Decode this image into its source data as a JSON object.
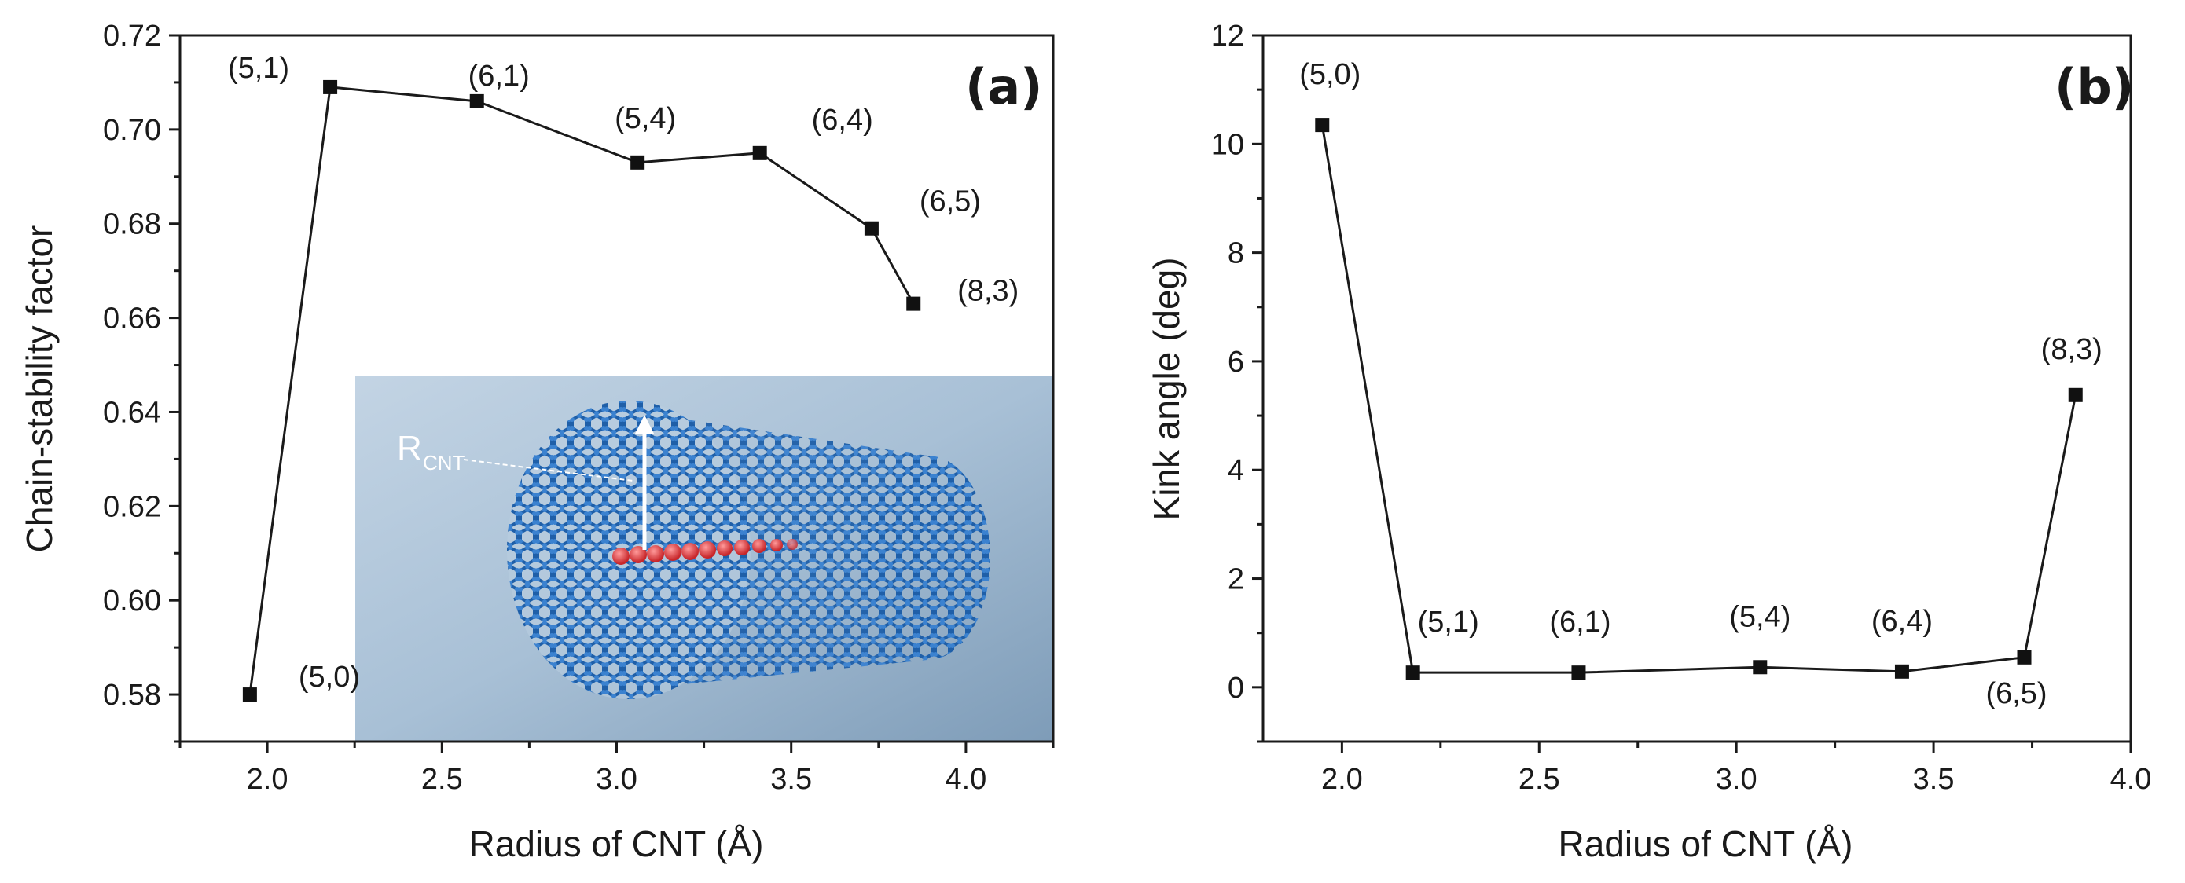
{
  "chart_data": [
    {
      "type": "line",
      "panel_label": "(a)",
      "xlabel": "Radius of CNT (Å)",
      "ylabel": "Chain-stability factor",
      "xlim": [
        1.75,
        4.25
      ],
      "ylim": [
        0.57,
        0.72
      ],
      "x_ticks": [
        "2.0",
        "2.5",
        "3.0",
        "3.5",
        "4.0"
      ],
      "x_tick_values": [
        2.0,
        2.5,
        3.0,
        3.5,
        4.0
      ],
      "y_ticks": [
        "0.58",
        "0.60",
        "0.62",
        "0.64",
        "0.66",
        "0.68",
        "0.70",
        "0.72"
      ],
      "y_tick_values": [
        0.58,
        0.6,
        0.62,
        0.64,
        0.66,
        0.68,
        0.7,
        0.72
      ],
      "series": [
        {
          "name": "Chain-stability factor",
          "x": [
            1.95,
            2.18,
            2.6,
            3.06,
            3.41,
            3.73,
            3.85
          ],
          "y": [
            0.58,
            0.709,
            0.706,
            0.693,
            0.695,
            0.679,
            0.663
          ],
          "labels": [
            "(5,0)",
            "(5,1)",
            "(6,1)",
            "(5,4)",
            "(6,4)",
            "(6,5)",
            "(8,3)"
          ]
        }
      ],
      "inset": {
        "description_label": "R",
        "description_subscript": "CNT"
      }
    },
    {
      "type": "line",
      "panel_label": "(b)",
      "xlabel": "Radius of CNT (Å)",
      "ylabel": "Kink angle (deg)",
      "xlim": [
        1.8,
        4.0
      ],
      "ylim": [
        -1,
        12
      ],
      "x_ticks": [
        "2.0",
        "2.5",
        "3.0",
        "3.5",
        "4.0"
      ],
      "x_tick_values": [
        2.0,
        2.5,
        3.0,
        3.5,
        4.0
      ],
      "y_ticks": [
        "0",
        "2",
        "4",
        "6",
        "8",
        "10",
        "12"
      ],
      "y_tick_values": [
        0,
        2,
        4,
        6,
        8,
        10,
        12
      ],
      "series": [
        {
          "name": "Kink angle",
          "x": [
            1.95,
            2.18,
            2.6,
            3.06,
            3.42,
            3.73,
            3.86
          ],
          "y": [
            10.35,
            0.27,
            0.27,
            0.37,
            0.29,
            0.55,
            5.38
          ],
          "labels": [
            "(5,0)",
            "(5,1)",
            "(6,1)",
            "(5,4)",
            "(6,4)",
            "(6,5)",
            "(8,3)"
          ]
        }
      ]
    }
  ]
}
